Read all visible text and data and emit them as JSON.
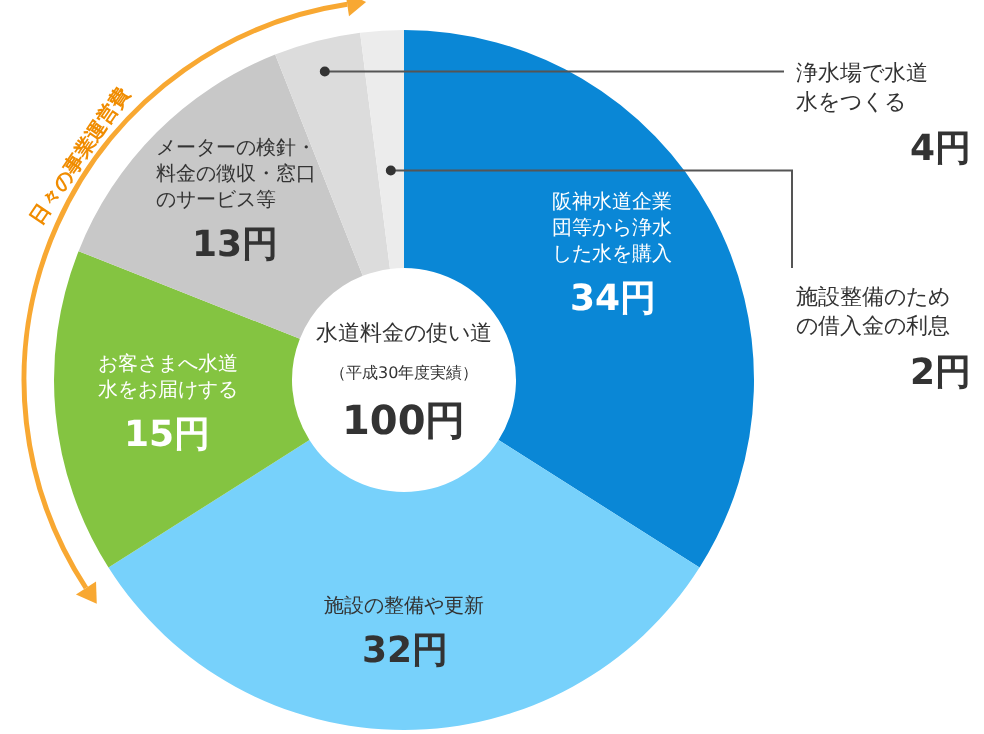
{
  "chart_data": {
    "type": "donut",
    "title": "水道料金の使い道",
    "subtitle": "（平成30年度実績）",
    "categories": [
      "阪神水道企業団等から浄水した水を購入",
      "施設の整備や更新",
      "お客さまへ水道水をお届けする",
      "メーターの検針・料金の徴収・窓口のサービス等",
      "浄水場で水道水をつくる",
      "施設整備のための借入金の利息"
    ],
    "values": [
      34,
      32,
      15,
      13,
      4,
      2
    ],
    "value_labels": [
      "34円",
      "32円",
      "15円",
      "13円",
      "4円",
      "2円"
    ],
    "colors": [
      "#0a87d6",
      "#77d1fb",
      "#84c441",
      "#c8c8c8",
      "#dcdcdc",
      "#ececec"
    ],
    "annotations": [
      "100円",
      "日々の事業運営費"
    ],
    "legend": false
  }
}
